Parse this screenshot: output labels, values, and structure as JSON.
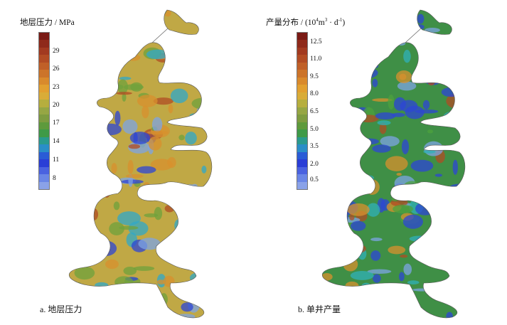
{
  "panels": [
    {
      "legend_title": "地层压力 / MPa",
      "ticks": [
        "29",
        "26",
        "23",
        "20",
        "17",
        "14",
        "11",
        "8"
      ],
      "caption": "a. 地层压力",
      "colorbar": [
        "#7a1a14",
        "#8f2a1a",
        "#a23a20",
        "#b24c24",
        "#c06028",
        "#cc742a",
        "#d98a2c",
        "#e2a030",
        "#d9ac38",
        "#b6ae3e",
        "#96a644",
        "#7e9c40",
        "#5e9a3c",
        "#3f9a48",
        "#2a9a8e",
        "#2a8ec8",
        "#2a5cd6",
        "#2a3ed6",
        "#4a62e0",
        "#6a86e6",
        "#8aa2e8"
      ],
      "map_palette": {
        "base": "#c0a845",
        "green": "#6fa23c",
        "orange": "#d8902e",
        "red": "#b04c24",
        "blue": "#2d46d6",
        "cyan": "#30a8c8",
        "light": "#7ea4e4"
      }
    },
    {
      "legend_title": "产量分布 / (10⁴m³ · d⁻¹)",
      "ticks": [
        "12.5",
        "11.0",
        "9.5",
        "8.0",
        "6.5",
        "5.0",
        "3.5",
        "2.0",
        "0.5"
      ],
      "caption": "b. 单井产量",
      "colorbar": [
        "#7a1a14",
        "#8f2a1a",
        "#a23a20",
        "#b24c24",
        "#c06028",
        "#cc742a",
        "#d98a2c",
        "#e2a030",
        "#d9ac38",
        "#b6ae3e",
        "#96a644",
        "#7e9c40",
        "#5e9a3c",
        "#3f9a48",
        "#2a9a8e",
        "#2a8ec8",
        "#2a5cd6",
        "#2a3ed6",
        "#4a62e0",
        "#6a86e6",
        "#8aa2e8"
      ],
      "map_palette": {
        "base": "#3f8f46",
        "green": "#4ea23e",
        "orange": "#d8902e",
        "red": "#b04c24",
        "blue": "#2d46d6",
        "cyan": "#30b0b8",
        "light": "#7ea4e4"
      }
    }
  ]
}
